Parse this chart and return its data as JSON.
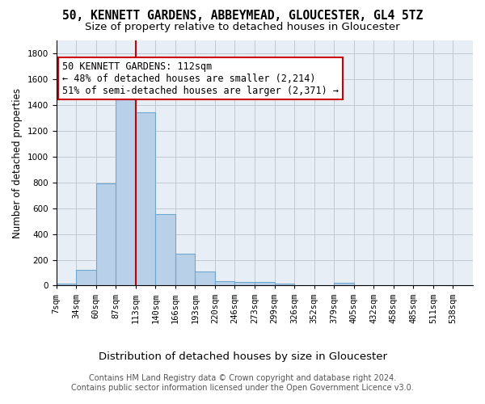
{
  "title": "50, KENNETT GARDENS, ABBEYMEAD, GLOUCESTER, GL4 5TZ",
  "subtitle": "Size of property relative to detached houses in Gloucester",
  "xlabel": "Distribution of detached houses by size in Gloucester",
  "ylabel": "Number of detached properties",
  "bar_color": "#b8d0e8",
  "bar_edge_color": "#6ea8d0",
  "background_color": "#ffffff",
  "plot_bg_color": "#e8eef5",
  "grid_color": "#c0c8d5",
  "annotation_line_color": "#cc0000",
  "annotation_box_color": "#cc0000",
  "annotation_line1": "50 KENNETT GARDENS: 112sqm",
  "annotation_line2": "← 48% of detached houses are smaller (2,214)",
  "annotation_line3": "51% of semi-detached houses are larger (2,371) →",
  "property_size_idx": 4,
  "categories": [
    "7sqm",
    "34sqm",
    "60sqm",
    "87sqm",
    "113sqm",
    "140sqm",
    "166sqm",
    "193sqm",
    "220sqm",
    "246sqm",
    "273sqm",
    "299sqm",
    "326sqm",
    "352sqm",
    "379sqm",
    "405sqm",
    "432sqm",
    "458sqm",
    "485sqm",
    "511sqm",
    "538sqm"
  ],
  "values": [
    15,
    125,
    790,
    1440,
    1345,
    555,
    250,
    110,
    35,
    28,
    28,
    18,
    2,
    2,
    20,
    0,
    0,
    0,
    0,
    0,
    0
  ],
  "ylim": [
    0,
    1900
  ],
  "footer_line1": "Contains HM Land Registry data © Crown copyright and database right 2024.",
  "footer_line2": "Contains public sector information licensed under the Open Government Licence v3.0.",
  "title_fontsize": 10.5,
  "subtitle_fontsize": 9.5,
  "ylabel_fontsize": 8.5,
  "xlabel_fontsize": 9.5,
  "tick_fontsize": 7.5,
  "annotation_fontsize": 8.5,
  "footer_fontsize": 7
}
